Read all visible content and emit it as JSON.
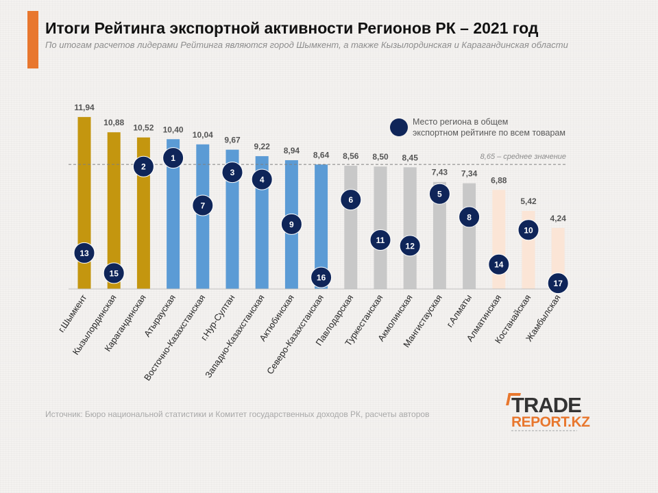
{
  "header": {
    "title": "Итоги Рейтинга экспортной активности Регионов РК – 2021 год",
    "subtitle": "По итогам расчетов лидерами Рейтинга являются город Шымкент, а также Кызылординская и Карагандинская области"
  },
  "colors": {
    "accent": "#e8772e",
    "leader_bar": "#c4960f",
    "above_avg_bar": "#5b9bd5",
    "below_avg_bar": "#c8c8c8",
    "low_bar": "#fbe5d6",
    "rank_circle": "#0f2559"
  },
  "chart_data": {
    "type": "bar",
    "categories": [
      "г.Шымкент",
      "Кызылординская",
      "Карагандинская",
      "Атырауская",
      "Восточно-Казахстанская",
      "г.Нур-Султан",
      "Западно-Казахстанская",
      "Актюбинская",
      "Северо-Казахстанская",
      "Павлодарская",
      "Туркестанская",
      "Акмолинская",
      "Мангистауская",
      "г.Алматы",
      "Алматинская",
      "Костанайская",
      "Жамбылская"
    ],
    "values": [
      11.94,
      10.88,
      10.52,
      10.4,
      10.04,
      9.67,
      9.22,
      8.94,
      8.64,
      8.56,
      8.5,
      8.45,
      7.43,
      7.34,
      6.88,
      5.42,
      4.24
    ],
    "value_labels": [
      "11,94",
      "10,88",
      "10,52",
      "10,40",
      "10,04",
      "9,67",
      "9,22",
      "8,94",
      "8,64",
      "8,56",
      "8,50",
      "8,45",
      "7,43",
      "7,34",
      "6,88",
      "5,42",
      "4,24"
    ],
    "bar_groups": [
      "leader",
      "leader",
      "leader",
      "above_avg",
      "above_avg",
      "above_avg",
      "above_avg",
      "above_avg",
      "above_avg",
      "below_avg",
      "below_avg",
      "below_avg",
      "below_avg",
      "below_avg",
      "low",
      "low",
      "low"
    ],
    "overall_rank": [
      13,
      15,
      2,
      1,
      7,
      3,
      4,
      9,
      16,
      6,
      11,
      12,
      5,
      8,
      14,
      10,
      17
    ],
    "overall_rank_level": [
      2.5,
      1.1,
      8.5,
      9.1,
      5.8,
      8.1,
      7.6,
      4.5,
      0.8,
      6.2,
      3.4,
      3.0,
      6.6,
      5.0,
      1.7,
      4.1,
      0.4
    ],
    "average": 8.65,
    "average_label": "8,65 – среднее значение",
    "legend_label": "Место региона в общем экспортном рейтинге по всем товарам",
    "legend_position": "top-right",
    "ylim": [
      0,
      12.6
    ],
    "grid": false
  },
  "footer": {
    "source": "Источник: Бюро национальной статистики и Комитет государственных доходов РК, расчеты авторов",
    "logo_line1": "TRADE",
    "logo_line2": "REPORT.KZ"
  }
}
